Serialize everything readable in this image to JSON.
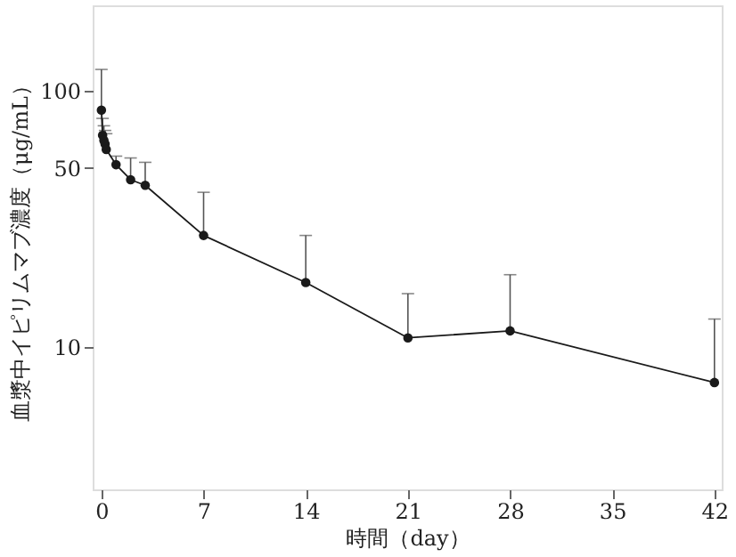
{
  "chart_data": {
    "type": "line",
    "xlabel": "時間（day）",
    "ylabel": "血漿中イピリムマブ濃度（μg/mL）",
    "x": [
      0,
      0.08,
      0.17,
      0.25,
      0.33,
      1,
      2,
      3,
      7,
      14,
      21,
      28,
      42
    ],
    "series": [
      {
        "color": "#1a1a1a",
        "values": [
          84,
          67,
          64,
          62,
          59,
          51.5,
          45,
          42.8,
          27.3,
          17.9,
          10.9,
          11.6,
          7.3
        ],
        "errors": [
          [
            84,
            121
          ],
          [
            67,
            78
          ],
          [
            64,
            73
          ],
          [
            62,
            70
          ],
          [
            59,
            68
          ],
          [
            51.5,
            55.6
          ],
          [
            45,
            54.7
          ],
          [
            42.8,
            52.6
          ],
          [
            27.3,
            40.2
          ],
          [
            17.9,
            27.3
          ],
          [
            10.9,
            16.2
          ],
          [
            11.6,
            19.2
          ],
          [
            7.3,
            12.9
          ]
        ]
      }
    ],
    "xlim": [
      -0.6,
      42.5
    ],
    "xticks": [
      0,
      7,
      14,
      21,
      28,
      35,
      42
    ],
    "ylim": [
      2.8,
      215
    ],
    "yticks": [
      10,
      50,
      100
    ],
    "log": true,
    "grid": false,
    "marker": "circle",
    "line_style": "solid"
  }
}
